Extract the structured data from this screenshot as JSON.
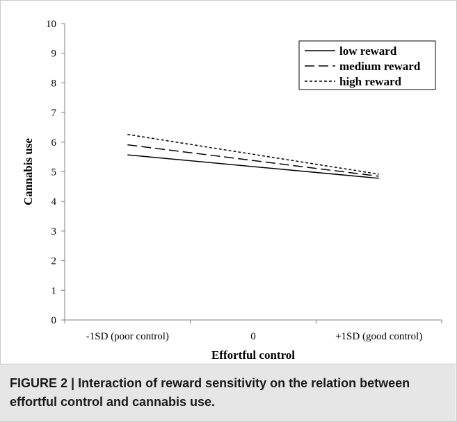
{
  "chart_data": {
    "type": "line",
    "categories": [
      "-1SD (poor control)",
      "0",
      "+1SD (good control)"
    ],
    "xlabel": "Effortful control",
    "ylabel": "Cannabis use",
    "ylim": [
      0,
      10
    ],
    "yticks": [
      "0",
      "1",
      "2",
      "3",
      "4",
      "5",
      "6",
      "7",
      "8",
      "9",
      "10"
    ],
    "grid": false,
    "legend_position": "top-right",
    "series": [
      {
        "name": "low reward",
        "x": [
          "-1SD (poor control)",
          "+1SD (good control)"
        ],
        "values": [
          5.57,
          4.78
        ],
        "style": "solid"
      },
      {
        "name": "medium reward",
        "x": [
          "-1SD (poor control)",
          "+1SD (good control)"
        ],
        "values": [
          5.91,
          4.85
        ],
        "style": "dashed"
      },
      {
        "name": "high reward",
        "x": [
          "-1SD (poor control)",
          "+1SD (good control)"
        ],
        "values": [
          6.26,
          4.92
        ],
        "style": "dotted"
      }
    ]
  },
  "caption": {
    "label": "FIGURE 2 |",
    "text": "Interaction of reward sensitivity on the relation between effortful control and cannabis use."
  }
}
